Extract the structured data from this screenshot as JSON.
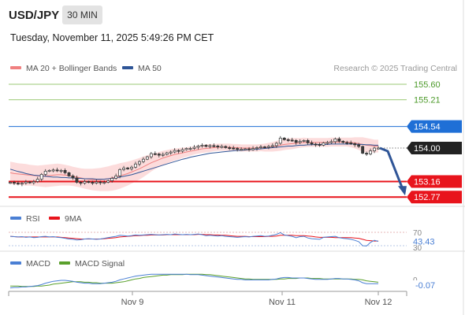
{
  "header": {
    "symbol": "USD/JPY",
    "timeframe": "30 MIN",
    "datetime": "Tuesday, November 11, 2025 5:49:26 PM CET"
  },
  "chart_data": [
    {
      "type": "candlestick",
      "legend": [
        {
          "name": "MA 20 + Bollinger Bands",
          "color": "#f08080"
        },
        {
          "name": "MA 50",
          "color": "#2f5597"
        }
      ],
      "copyright": "Research © 2025 Trading Central",
      "x_tick_labels": [
        "Nov 9",
        "Nov 11",
        "Nov 12"
      ],
      "levels": [
        {
          "value": 155.6,
          "label": "155.60",
          "kind": "resistance",
          "color": "#7ab648"
        },
        {
          "value": 155.21,
          "label": "155.21",
          "kind": "resistance",
          "color": "#7ab648"
        },
        {
          "value": 154.54,
          "label": "154.54",
          "kind": "pivot",
          "color": "#1f6fd6"
        },
        {
          "value": 154.0,
          "label": "154.00",
          "kind": "last",
          "color": "#222222"
        },
        {
          "value": 153.16,
          "label": "153.16",
          "kind": "support",
          "color": "#e8141c"
        },
        {
          "value": 152.77,
          "label": "152.77",
          "kind": "support",
          "color": "#e8141c"
        }
      ],
      "forecast_arrow": {
        "from": 154.0,
        "to": 152.77,
        "color": "#2f5597"
      },
      "closes": [
        153.14,
        153.12,
        153.1,
        153.12,
        153.15,
        153.13,
        153.16,
        153.22,
        153.34,
        153.42,
        153.44,
        153.45,
        153.43,
        153.44,
        153.38,
        153.3,
        153.25,
        153.14,
        153.12,
        153.16,
        153.14,
        153.12,
        153.15,
        153.13,
        153.14,
        153.18,
        153.24,
        153.3,
        153.46,
        153.5,
        153.48,
        153.52,
        153.6,
        153.66,
        153.72,
        153.78,
        153.86,
        153.85,
        153.82,
        153.84,
        153.88,
        153.9,
        153.94,
        153.92,
        153.96,
        153.99,
        153.99,
        154.02,
        154.05,
        154.07,
        154.04,
        154.06,
        154.05,
        154.03,
        154.04,
        154.01,
        154.0,
        153.99,
        153.97,
        153.97,
        153.98,
        153.96,
        153.99,
        154.01,
        154.03,
        154.02,
        154.04,
        154.06,
        154.12,
        154.25,
        154.21,
        154.2,
        154.19,
        154.14,
        154.17,
        154.19,
        154.13,
        154.1,
        154.09,
        154.07,
        154.13,
        154.14,
        154.16,
        154.23,
        154.17,
        154.14,
        154.13,
        154.11,
        154.08,
        154.04,
        153.87,
        153.85,
        153.93,
        154.0,
        154.0
      ],
      "ma20": [
        153.38,
        153.36,
        153.35,
        153.34,
        153.33,
        153.32,
        153.31,
        153.3,
        153.3,
        153.3,
        153.31,
        153.32,
        153.33,
        153.33,
        153.32,
        153.31,
        153.29,
        153.27,
        153.25,
        153.23,
        153.22,
        153.21,
        153.21,
        153.21,
        153.22,
        153.23,
        153.25,
        153.27,
        153.3,
        153.33,
        153.36,
        153.4,
        153.44,
        153.48,
        153.53,
        153.58,
        153.63,
        153.67,
        153.71,
        153.75,
        153.78,
        153.81,
        153.84,
        153.86,
        153.88,
        153.9,
        153.92,
        153.94,
        153.96,
        153.98,
        153.99,
        154.0,
        154.01,
        154.02,
        154.02,
        154.02,
        154.02,
        154.01,
        154.01,
        154.0,
        154.0,
        154.0,
        154.0,
        154.0,
        154.01,
        154.01,
        154.02,
        154.03,
        154.05,
        154.07,
        154.09,
        154.1,
        154.11,
        154.12,
        154.13,
        154.14,
        154.14,
        154.14,
        154.14,
        154.14,
        154.14,
        154.14,
        154.15,
        154.15,
        154.15,
        154.15,
        154.15,
        154.14,
        154.13,
        154.11,
        154.09,
        154.07,
        154.06,
        154.05,
        154.05
      ],
      "bb_width": [
        0.28,
        0.28,
        0.27,
        0.27,
        0.27,
        0.26,
        0.26,
        0.26,
        0.27,
        0.28,
        0.28,
        0.28,
        0.28,
        0.27,
        0.26,
        0.25,
        0.24,
        0.24,
        0.24,
        0.25,
        0.26,
        0.27,
        0.28,
        0.29,
        0.3,
        0.31,
        0.32,
        0.32,
        0.32,
        0.31,
        0.3,
        0.29,
        0.28,
        0.27,
        0.26,
        0.24,
        0.22,
        0.2,
        0.19,
        0.18,
        0.17,
        0.16,
        0.15,
        0.14,
        0.13,
        0.12,
        0.11,
        0.1,
        0.1,
        0.1,
        0.1,
        0.1,
        0.09,
        0.09,
        0.09,
        0.09,
        0.09,
        0.09,
        0.09,
        0.09,
        0.09,
        0.09,
        0.09,
        0.09,
        0.09,
        0.1,
        0.11,
        0.12,
        0.13,
        0.14,
        0.14,
        0.14,
        0.14,
        0.13,
        0.12,
        0.12,
        0.11,
        0.11,
        0.11,
        0.11,
        0.11,
        0.11,
        0.11,
        0.11,
        0.11,
        0.11,
        0.11,
        0.12,
        0.14,
        0.16,
        0.18,
        0.18,
        0.17,
        0.16,
        0.16
      ],
      "ma50": [
        153.47,
        153.44,
        153.41,
        153.39,
        153.36,
        153.34,
        153.32,
        153.31,
        153.3,
        153.29,
        153.28,
        153.27,
        153.27,
        153.26,
        153.26,
        153.25,
        153.25,
        153.24,
        153.24,
        153.23,
        153.23,
        153.23,
        153.22,
        153.22,
        153.22,
        153.23,
        153.24,
        153.25,
        153.27,
        153.29,
        153.31,
        153.33,
        153.36,
        153.39,
        153.42,
        153.45,
        153.48,
        153.51,
        153.54,
        153.57,
        153.6,
        153.63,
        153.66,
        153.69,
        153.72,
        153.74,
        153.77,
        153.79,
        153.81,
        153.83,
        153.85,
        153.87,
        153.88,
        153.89,
        153.9,
        153.91,
        153.92,
        153.93,
        153.94,
        153.94,
        153.95,
        153.96,
        153.96,
        153.97,
        153.98,
        153.99,
        154.0,
        154.01,
        154.02,
        154.03,
        154.04,
        154.05,
        154.05,
        154.06,
        154.07,
        154.07,
        154.08,
        154.08,
        154.09,
        154.09,
        154.09,
        154.09,
        154.1,
        154.1,
        154.1,
        154.1,
        154.1,
        154.1,
        154.1,
        154.09,
        154.09,
        154.08,
        154.08,
        154.07,
        154.07
      ]
    },
    {
      "type": "line",
      "legend": [
        {
          "name": "RSI",
          "color": "#4a7fd4"
        },
        {
          "name": "9MA",
          "color": "#e8141c"
        }
      ],
      "ref_levels": [
        70,
        30
      ],
      "last_value_label": "43.43",
      "rsi": [
        58,
        57,
        56,
        57,
        55,
        56,
        54,
        55,
        57,
        58,
        56,
        57,
        55,
        54,
        52,
        50,
        49,
        47,
        48,
        50,
        51,
        50,
        49,
        50,
        52,
        54,
        56,
        58,
        61,
        60,
        59,
        60,
        62,
        61,
        62,
        63,
        64,
        63,
        62,
        63,
        64,
        63,
        65,
        64,
        63,
        64,
        63,
        64,
        65,
        63,
        60,
        61,
        60,
        59,
        60,
        58,
        57,
        56,
        55,
        56,
        57,
        56,
        58,
        59,
        60,
        58,
        59,
        61,
        64,
        69,
        62,
        60,
        58,
        54,
        57,
        58,
        53,
        51,
        50,
        49,
        55,
        56,
        57,
        58,
        54,
        52,
        51,
        49,
        46,
        42,
        30,
        29,
        40,
        46,
        43
      ],
      "ma9": [
        58,
        57,
        56,
        56,
        56,
        56,
        56,
        56,
        56,
        56,
        56,
        56,
        56,
        55,
        54,
        53,
        52,
        51,
        50,
        50,
        50,
        50,
        50,
        50,
        51,
        52,
        53,
        54,
        56,
        57,
        58,
        59,
        60,
        60,
        61,
        61,
        62,
        62,
        62,
        62,
        63,
        63,
        63,
        63,
        63,
        63,
        63,
        63,
        64,
        64,
        63,
        63,
        62,
        62,
        61,
        61,
        60,
        59,
        58,
        58,
        58,
        57,
        57,
        57,
        57,
        57,
        58,
        58,
        59,
        61,
        61,
        61,
        61,
        60,
        60,
        60,
        59,
        58,
        56,
        55,
        55,
        55,
        55,
        54,
        54,
        54,
        54,
        54,
        53,
        52,
        49,
        46,
        45,
        44,
        44
      ]
    },
    {
      "type": "line",
      "legend": [
        {
          "name": "MACD",
          "color": "#4a7fd4"
        },
        {
          "name": "MACD Signal",
          "color": "#5aa02c"
        }
      ],
      "last_value_label": "-0.07",
      "zero_tick_label": "0",
      "macd": [
        -0.16,
        -0.15,
        -0.15,
        -0.14,
        -0.14,
        -0.13,
        -0.12,
        -0.11,
        -0.09,
        -0.06,
        -0.04,
        -0.02,
        -0.01,
        0.0,
        0.0,
        -0.01,
        -0.02,
        -0.04,
        -0.05,
        -0.06,
        -0.06,
        -0.07,
        -0.07,
        -0.07,
        -0.06,
        -0.05,
        -0.04,
        -0.02,
        0.01,
        0.03,
        0.05,
        0.07,
        0.09,
        0.1,
        0.11,
        0.12,
        0.13,
        0.13,
        0.13,
        0.13,
        0.13,
        0.13,
        0.13,
        0.13,
        0.13,
        0.13,
        0.12,
        0.12,
        0.12,
        0.11,
        0.1,
        0.09,
        0.08,
        0.07,
        0.06,
        0.05,
        0.04,
        0.03,
        0.02,
        0.02,
        0.01,
        0.01,
        0.01,
        0.01,
        0.01,
        0.01,
        0.01,
        0.02,
        0.03,
        0.05,
        0.06,
        0.06,
        0.05,
        0.05,
        0.05,
        0.05,
        0.04,
        0.03,
        0.02,
        0.02,
        0.02,
        0.02,
        0.03,
        0.04,
        0.04,
        0.03,
        0.03,
        0.02,
        0.01,
        -0.01,
        -0.05,
        -0.07,
        -0.07,
        -0.07,
        -0.07
      ],
      "signal": [
        -0.12,
        -0.12,
        -0.12,
        -0.13,
        -0.13,
        -0.13,
        -0.13,
        -0.12,
        -0.12,
        -0.11,
        -0.1,
        -0.08,
        -0.07,
        -0.06,
        -0.05,
        -0.04,
        -0.03,
        -0.03,
        -0.03,
        -0.04,
        -0.04,
        -0.05,
        -0.05,
        -0.06,
        -0.06,
        -0.06,
        -0.06,
        -0.05,
        -0.04,
        -0.03,
        -0.01,
        0.01,
        0.03,
        0.04,
        0.06,
        0.07,
        0.08,
        0.09,
        0.1,
        0.11,
        0.11,
        0.12,
        0.12,
        0.12,
        0.12,
        0.13,
        0.13,
        0.13,
        0.13,
        0.13,
        0.12,
        0.12,
        0.11,
        0.1,
        0.09,
        0.08,
        0.07,
        0.06,
        0.05,
        0.04,
        0.03,
        0.03,
        0.02,
        0.02,
        0.02,
        0.02,
        0.02,
        0.02,
        0.02,
        0.03,
        0.03,
        0.04,
        0.04,
        0.04,
        0.05,
        0.05,
        0.05,
        0.04,
        0.04,
        0.04,
        0.03,
        0.03,
        0.03,
        0.03,
        0.03,
        0.03,
        0.03,
        0.03,
        0.02,
        0.02,
        0.01,
        -0.01,
        -0.02,
        -0.03,
        -0.04
      ]
    }
  ]
}
